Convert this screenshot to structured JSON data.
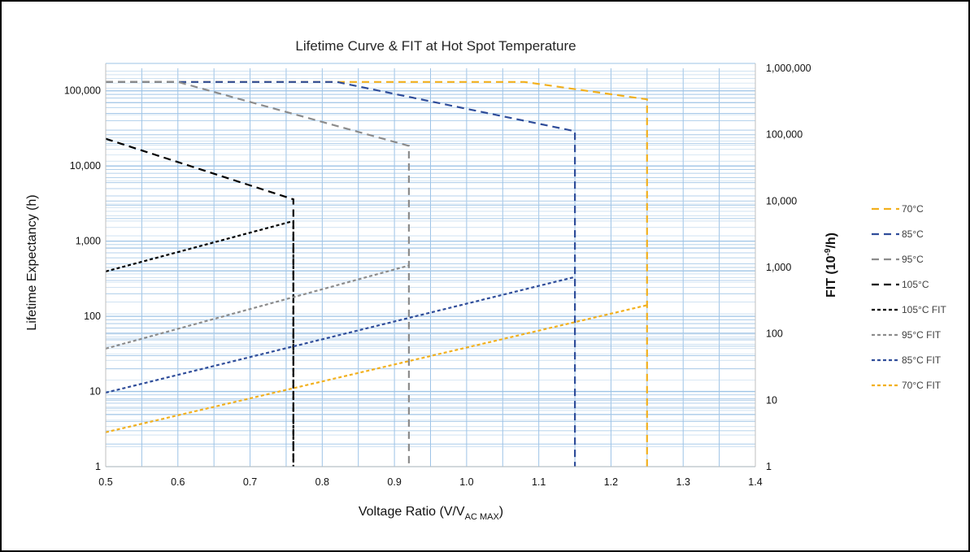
{
  "chart_data": {
    "type": "line",
    "title": "Lifetime Curve & FIT at Hot Spot Temperature",
    "xlabel_main": "Voltage Ratio (V/V",
    "xlabel_sub": "AC MAX",
    "xlabel_close": ")",
    "ylabel": "Lifetime Expectancy (h)",
    "y2label_main": "FIT (10",
    "y2label_sup": "-9",
    "y2label_close": "/h)",
    "xlim": [
      0.5,
      1.4
    ],
    "ylim": [
      1,
      200000
    ],
    "y2lim": [
      1,
      1000000
    ],
    "yscale": "log",
    "y2scale": "log",
    "grid": true,
    "legend_position": "right",
    "x_ticks": [
      "0.5",
      "0.6",
      "0.7",
      "0.8",
      "0.9",
      "1.0",
      "1.1",
      "1.2",
      "1.3",
      "1.4"
    ],
    "y_ticks": [
      {
        "value": 1,
        "label": "1"
      },
      {
        "value": 10,
        "label": "10"
      },
      {
        "value": 100,
        "label": "100"
      },
      {
        "value": 1000,
        "label": "1,000"
      },
      {
        "value": 10000,
        "label": "10,000"
      },
      {
        "value": 100000,
        "label": "100,000"
      }
    ],
    "y2_ticks": [
      {
        "value": 1,
        "label": "1"
      },
      {
        "value": 10,
        "label": "10"
      },
      {
        "value": 100,
        "label": "100"
      },
      {
        "value": 1000,
        "label": "1,000"
      },
      {
        "value": 10000,
        "label": "10,000"
      },
      {
        "value": 100000,
        "label": "100,000"
      },
      {
        "value": 1000000,
        "label": "1,000,000"
      }
    ],
    "series": [
      {
        "name": "70°C",
        "axis": "left",
        "style": "dash",
        "color": "#F2B01E",
        "x": [
          0.5,
          1.08,
          1.25,
          1.25
        ],
        "y": [
          131400,
          131400,
          77000,
          1
        ]
      },
      {
        "name": "85°C",
        "axis": "left",
        "style": "dash",
        "color": "#2F4D9A",
        "x": [
          0.5,
          0.82,
          1.15,
          1.15
        ],
        "y": [
          131400,
          131400,
          29000,
          1
        ]
      },
      {
        "name": "95°C",
        "axis": "left",
        "style": "dash",
        "color": "#8C8C8C",
        "x": [
          0.5,
          0.6,
          0.92,
          0.92
        ],
        "y": [
          131400,
          131400,
          18500,
          1
        ]
      },
      {
        "name": "105°C",
        "axis": "left",
        "style": "dash",
        "color": "#000000",
        "x": [
          0.5,
          0.76,
          0.76
        ],
        "y": [
          23000,
          3600,
          1
        ]
      },
      {
        "name": "105°C FIT",
        "axis": "right",
        "style": "dot",
        "color": "#000000",
        "x": [
          0.5,
          0.76,
          0.76
        ],
        "y": [
          870,
          5000,
          1
        ]
      },
      {
        "name": "95°C FIT",
        "axis": "right",
        "style": "dot",
        "color": "#8C8C8C",
        "x": [
          0.5,
          0.92
        ],
        "y": [
          60,
          1070
        ]
      },
      {
        "name": "85°C FIT",
        "axis": "right",
        "style": "dot",
        "color": "#2F4D9A",
        "x": [
          0.5,
          1.15
        ],
        "y": [
          13,
          720
        ]
      },
      {
        "name": "70°C FIT",
        "axis": "right",
        "style": "dot",
        "color": "#F2B01E",
        "x": [
          0.5,
          1.25
        ],
        "y": [
          3.3,
          270
        ]
      }
    ]
  }
}
